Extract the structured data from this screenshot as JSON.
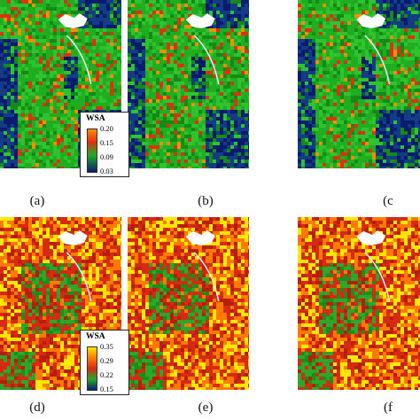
{
  "figure": {
    "rows": [
      {
        "legend": {
          "title": "WSA",
          "ticks": [
            "0.20",
            "0.15",
            "0.09",
            "0.03"
          ]
        },
        "panels": [
          {
            "label": "(a)"
          },
          {
            "label": "(b)"
          },
          {
            "label": "(c"
          }
        ]
      },
      {
        "legend": {
          "title": "WSA",
          "ticks": [
            "0.35",
            "0.29",
            "0.22",
            "0.15"
          ]
        },
        "panels": [
          {
            "label": "(d)"
          },
          {
            "label": "(e)"
          },
          {
            "label": "(f"
          }
        ]
      }
    ],
    "colors": {
      "top_row_ramp": [
        "#ff8c00",
        "#e03010",
        "#1fae1f",
        "#0a1a6e"
      ],
      "bottom_row_ramp": [
        "#ffe800",
        "#ff7a00",
        "#d62a12",
        "#2aa82a",
        "#0a1a6e"
      ],
      "water": "#0b2f6a",
      "cloud": "#ffffff"
    }
  }
}
